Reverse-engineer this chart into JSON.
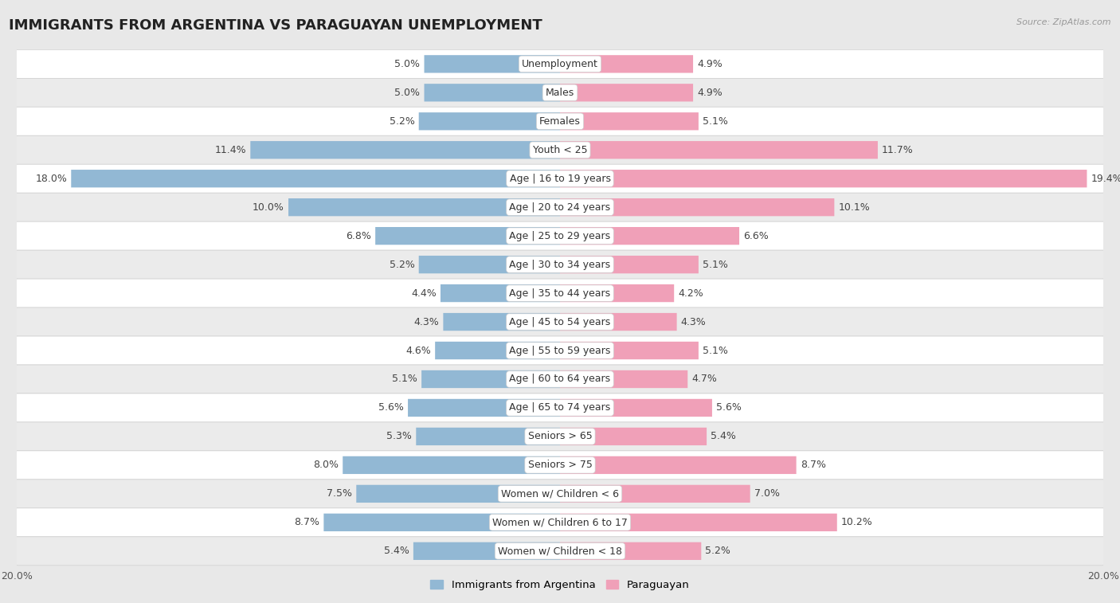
{
  "title": "IMMIGRANTS FROM ARGENTINA VS PARAGUAYAN UNEMPLOYMENT",
  "source": "Source: ZipAtlas.com",
  "categories": [
    "Unemployment",
    "Males",
    "Females",
    "Youth < 25",
    "Age | 16 to 19 years",
    "Age | 20 to 24 years",
    "Age | 25 to 29 years",
    "Age | 30 to 34 years",
    "Age | 35 to 44 years",
    "Age | 45 to 54 years",
    "Age | 55 to 59 years",
    "Age | 60 to 64 years",
    "Age | 65 to 74 years",
    "Seniors > 65",
    "Seniors > 75",
    "Women w/ Children < 6",
    "Women w/ Children 6 to 17",
    "Women w/ Children < 18"
  ],
  "argentina_values": [
    5.0,
    5.0,
    5.2,
    11.4,
    18.0,
    10.0,
    6.8,
    5.2,
    4.4,
    4.3,
    4.6,
    5.1,
    5.6,
    5.3,
    8.0,
    7.5,
    8.7,
    5.4
  ],
  "paraguayan_values": [
    4.9,
    4.9,
    5.1,
    11.7,
    19.4,
    10.1,
    6.6,
    5.1,
    4.2,
    4.3,
    5.1,
    4.7,
    5.6,
    5.4,
    8.7,
    7.0,
    10.2,
    5.2
  ],
  "argentina_color": "#92b8d4",
  "paraguayan_color": "#f0a0b8",
  "background_color": "#e8e8e8",
  "row_white": "#ffffff",
  "row_gray": "#ebebeb",
  "xlim": 20.0,
  "legend_argentina": "Immigrants from Argentina",
  "legend_paraguayan": "Paraguayan",
  "bar_height": 0.62,
  "title_fontsize": 13,
  "label_fontsize": 9,
  "value_fontsize": 9,
  "axis_tick_fontsize": 9,
  "row_border_color": "#d0d0d0"
}
